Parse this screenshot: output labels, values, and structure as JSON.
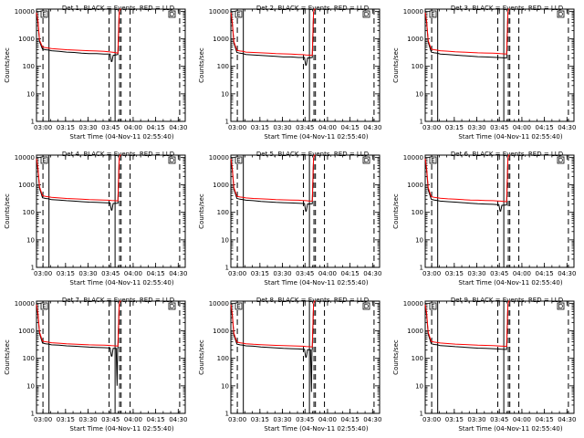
{
  "colors": {
    "events": "#000000",
    "lld": "#ff0000",
    "background": "#ffffff"
  },
  "shared": {
    "ylabel": "Counts/sec",
    "xlabel": "Start Time (04-Nov-11 02:55:40)",
    "xticks": [
      "03:00",
      "03:15",
      "03:30",
      "03:45",
      "04:00",
      "04:15",
      "04:30"
    ],
    "yticks": [
      "1",
      "10",
      "100",
      "1000",
      "10000"
    ],
    "legend_markers": [
      "E",
      "D"
    ]
  },
  "chart_data": [
    {
      "type": "line",
      "title": "Det 1, BLACK = Events, RED = LLD",
      "x_unit": "minutes since 02:55:40",
      "xlim": [
        0,
        99
      ],
      "ylim": [
        1,
        12000
      ],
      "yscale": "log",
      "solid_vlines": [
        8.3,
        52.3
      ],
      "dashed_vlines": [
        4.3,
        48.3,
        55.3,
        56.3,
        62.3,
        95.3
      ],
      "series": [
        {
          "name": "Events",
          "x": [
            0,
            1,
            2,
            4,
            6,
            8,
            10,
            15,
            20,
            25,
            30,
            35,
            40,
            45,
            48,
            49,
            49.8,
            50.2,
            51,
            54.2,
            55,
            55.6,
            56.2
          ],
          "y": [
            9000,
            4000,
            800,
            420,
            400,
            390,
            370,
            350,
            330,
            320,
            300,
            290,
            290,
            280,
            280,
            280,
            150,
            150,
            250,
            270,
            9000,
            12000,
            12000
          ]
        },
        {
          "name": "LLD",
          "x": [
            0,
            1,
            2,
            4,
            6,
            8,
            10,
            15,
            20,
            25,
            30,
            35,
            40,
            45,
            48,
            50,
            52,
            54.2,
            55,
            55.6,
            56.2
          ],
          "y": [
            9000,
            4500,
            900,
            500,
            480,
            460,
            440,
            420,
            400,
            390,
            380,
            370,
            360,
            350,
            340,
            330,
            320,
            300,
            9000,
            12000,
            12000
          ]
        }
      ]
    },
    {
      "type": "line",
      "title": "Det 2, BLACK = Events, RED = LLD",
      "x_unit": "minutes since 02:55:40",
      "xlim": [
        0,
        99
      ],
      "ylim": [
        1,
        12000
      ],
      "yscale": "log",
      "solid_vlines": [
        8.3,
        52.3
      ],
      "dashed_vlines": [
        4.3,
        48.3,
        55.3,
        56.3,
        62.3,
        95.3
      ],
      "series": [
        {
          "name": "Events",
          "x": [
            0,
            1,
            2,
            4,
            6,
            8,
            10,
            15,
            20,
            25,
            30,
            35,
            40,
            45,
            48,
            49,
            49.8,
            50.2,
            51,
            54.2,
            55,
            55.6,
            56.2
          ],
          "y": [
            9000,
            3500,
            700,
            320,
            300,
            290,
            270,
            260,
            250,
            240,
            230,
            220,
            220,
            210,
            210,
            210,
            110,
            110,
            200,
            210,
            9000,
            12000,
            12000
          ]
        },
        {
          "name": "LLD",
          "x": [
            0,
            1,
            2,
            4,
            6,
            8,
            10,
            15,
            20,
            25,
            30,
            35,
            40,
            45,
            48,
            50,
            52,
            54.2,
            55,
            55.6,
            56.2
          ],
          "y": [
            9000,
            4000,
            800,
            380,
            360,
            350,
            330,
            320,
            310,
            300,
            290,
            285,
            280,
            270,
            265,
            260,
            255,
            250,
            9000,
            12000,
            12000
          ]
        }
      ]
    },
    {
      "type": "line",
      "title": "Det 3, BLACK = Events, RED = LLD",
      "x_unit": "minutes since 02:55:40",
      "xlim": [
        0,
        99
      ],
      "ylim": [
        1,
        12000
      ],
      "yscale": "log",
      "solid_vlines": [
        8.3,
        52.3
      ],
      "dashed_vlines": [
        4.3,
        48.3,
        55.3,
        56.3,
        62.3,
        95.3
      ],
      "series": [
        {
          "name": "Events",
          "x": [
            0,
            1,
            2,
            4,
            6,
            8,
            10,
            15,
            20,
            25,
            30,
            35,
            40,
            45,
            48,
            51,
            54.2,
            55,
            55.6,
            56.2
          ],
          "y": [
            9000,
            3800,
            750,
            330,
            310,
            300,
            280,
            270,
            255,
            245,
            235,
            225,
            220,
            215,
            210,
            205,
            200,
            9000,
            12000,
            12000
          ]
        },
        {
          "name": "LLD",
          "x": [
            0,
            1,
            2,
            4,
            6,
            8,
            10,
            15,
            20,
            25,
            30,
            35,
            40,
            45,
            48,
            50,
            52,
            54.2,
            55,
            55.6,
            56.2
          ],
          "y": [
            9000,
            4200,
            850,
            420,
            400,
            385,
            370,
            355,
            340,
            330,
            320,
            310,
            305,
            300,
            295,
            290,
            285,
            280,
            9000,
            12000,
            12000
          ]
        }
      ]
    },
    {
      "type": "line",
      "title": "Det 4, BLACK = Events, RED = LLD",
      "x_unit": "minutes since 02:55:40",
      "xlim": [
        0,
        99
      ],
      "ylim": [
        1,
        12000
      ],
      "yscale": "log",
      "solid_vlines": [
        8.3,
        52.3
      ],
      "dashed_vlines": [
        4.3,
        48.3,
        55.3,
        56.3,
        62.3,
        95.3
      ],
      "series": [
        {
          "name": "Events",
          "x": [
            0,
            1,
            2,
            4,
            6,
            8,
            10,
            15,
            20,
            25,
            30,
            35,
            40,
            45,
            48,
            49,
            49.8,
            50.2,
            51,
            54.2,
            55,
            55.6,
            56.2
          ],
          "y": [
            9000,
            3600,
            750,
            340,
            320,
            310,
            290,
            280,
            265,
            255,
            245,
            235,
            230,
            225,
            220,
            220,
            120,
            120,
            210,
            215,
            9000,
            12000,
            12000
          ]
        },
        {
          "name": "LLD",
          "x": [
            0,
            1,
            2,
            4,
            6,
            8,
            10,
            15,
            20,
            25,
            30,
            35,
            40,
            45,
            48,
            50,
            52,
            54.2,
            55,
            55.6,
            56.2
          ],
          "y": [
            9000,
            4100,
            850,
            400,
            380,
            365,
            350,
            335,
            320,
            310,
            300,
            290,
            285,
            280,
            275,
            270,
            265,
            260,
            9000,
            12000,
            12000
          ]
        }
      ]
    },
    {
      "type": "line",
      "title": "Det 5, BLACK = Events, RED = LLD",
      "x_unit": "minutes since 02:55:40",
      "xlim": [
        0,
        99
      ],
      "ylim": [
        1,
        12000
      ],
      "yscale": "log",
      "solid_vlines": [
        8.3,
        52.3
      ],
      "dashed_vlines": [
        4.3,
        48.3,
        55.3,
        56.3,
        62.3,
        95.3
      ],
      "series": [
        {
          "name": "Events",
          "x": [
            0,
            1,
            2,
            4,
            6,
            8,
            10,
            15,
            20,
            25,
            30,
            35,
            40,
            45,
            48,
            49,
            49.8,
            50.2,
            51,
            54.2,
            55,
            55.6,
            56.2
          ],
          "y": [
            9000,
            3400,
            700,
            320,
            300,
            290,
            275,
            265,
            250,
            240,
            230,
            225,
            220,
            215,
            210,
            210,
            110,
            110,
            200,
            205,
            9000,
            12000,
            12000
          ]
        },
        {
          "name": "LLD",
          "x": [
            0,
            1,
            2,
            4,
            6,
            8,
            10,
            15,
            20,
            25,
            30,
            35,
            40,
            45,
            48,
            50,
            52,
            54.2,
            55,
            55.6,
            56.2
          ],
          "y": [
            9000,
            3900,
            800,
            380,
            360,
            350,
            335,
            320,
            310,
            300,
            290,
            285,
            280,
            275,
            270,
            265,
            260,
            255,
            9000,
            12000,
            12000
          ]
        }
      ]
    },
    {
      "type": "line",
      "title": "Det 6, BLACK = Events, RED = LLD",
      "x_unit": "minutes since 02:55:40",
      "xlim": [
        0,
        99
      ],
      "ylim": [
        1,
        12000
      ],
      "yscale": "log",
      "solid_vlines": [
        8.3,
        52.3
      ],
      "dashed_vlines": [
        4.3,
        48.3,
        55.3,
        56.3,
        62.3,
        95.3
      ],
      "series": [
        {
          "name": "Events",
          "x": [
            0,
            1,
            2,
            4,
            6,
            8,
            10,
            15,
            20,
            25,
            30,
            35,
            40,
            45,
            48,
            49,
            49.8,
            50.2,
            51,
            54.2,
            55,
            55.6,
            56.2
          ],
          "y": [
            9000,
            3300,
            650,
            300,
            280,
            270,
            255,
            245,
            235,
            225,
            215,
            205,
            200,
            195,
            190,
            190,
            110,
            110,
            180,
            185,
            9000,
            12000,
            12000
          ]
        },
        {
          "name": "LLD",
          "x": [
            0,
            1,
            2,
            4,
            6,
            8,
            10,
            15,
            20,
            25,
            30,
            35,
            40,
            45,
            48,
            50,
            52,
            54.2,
            55,
            55.6,
            56.2
          ],
          "y": [
            9000,
            3800,
            780,
            370,
            350,
            340,
            325,
            310,
            300,
            290,
            280,
            275,
            270,
            265,
            260,
            255,
            250,
            245,
            9000,
            12000,
            12000
          ]
        }
      ]
    },
    {
      "type": "line",
      "title": "Det 7, BLACK = Events, RED = LLD",
      "x_unit": "minutes since 02:55:40",
      "xlim": [
        0,
        99
      ],
      "ylim": [
        1,
        12000
      ],
      "yscale": "log",
      "solid_vlines": [
        8.3,
        52.3
      ],
      "dashed_vlines": [
        4.3,
        48.3,
        55.3,
        56.3,
        62.3,
        95.3
      ],
      "series": [
        {
          "name": "Events",
          "x": [
            0,
            1,
            2,
            4,
            6,
            8,
            10,
            15,
            20,
            25,
            30,
            35,
            40,
            45,
            48,
            49,
            49.8,
            50.2,
            51,
            53,
            53.6,
            54,
            54.2,
            55,
            55.6,
            56.2
          ],
          "y": [
            9000,
            3800,
            800,
            360,
            340,
            330,
            310,
            300,
            285,
            275,
            265,
            255,
            250,
            245,
            240,
            240,
            120,
            120,
            230,
            230,
            10,
            230,
            235,
            9000,
            12000,
            12000
          ]
        },
        {
          "name": "LLD",
          "x": [
            0,
            1,
            2,
            4,
            6,
            8,
            10,
            15,
            20,
            25,
            30,
            35,
            40,
            45,
            48,
            50,
            52,
            54.2,
            55,
            55.6,
            56.2
          ],
          "y": [
            9000,
            4300,
            900,
            420,
            400,
            385,
            370,
            355,
            340,
            330,
            320,
            310,
            305,
            300,
            295,
            290,
            285,
            280,
            9000,
            12000,
            12000
          ]
        }
      ]
    },
    {
      "type": "line",
      "title": "Det 8, BLACK = Events, RED = LLD",
      "x_unit": "minutes since 02:55:40",
      "xlim": [
        0,
        99
      ],
      "ylim": [
        1,
        12000
      ],
      "yscale": "log",
      "solid_vlines": [
        8.3,
        52.3
      ],
      "dashed_vlines": [
        4.3,
        48.3,
        55.3,
        56.3,
        62.3,
        95.3
      ],
      "series": [
        {
          "name": "Events",
          "x": [
            0,
            1,
            2,
            4,
            6,
            8,
            10,
            15,
            20,
            25,
            30,
            35,
            40,
            45,
            48,
            49,
            49.8,
            50.2,
            51,
            53,
            53.6,
            54,
            54.2,
            55,
            55.6,
            56.2
          ],
          "y": [
            9000,
            3500,
            700,
            330,
            310,
            300,
            285,
            275,
            260,
            250,
            240,
            230,
            225,
            220,
            215,
            215,
            110,
            110,
            205,
            205,
            6,
            205,
            210,
            9000,
            12000,
            12000
          ]
        },
        {
          "name": "LLD",
          "x": [
            0,
            1,
            2,
            4,
            6,
            8,
            10,
            15,
            20,
            25,
            30,
            35,
            40,
            45,
            48,
            50,
            52,
            54.2,
            55,
            55.6,
            56.2
          ],
          "y": [
            9000,
            4000,
            820,
            390,
            370,
            355,
            340,
            325,
            315,
            305,
            295,
            290,
            285,
            280,
            275,
            270,
            265,
            260,
            9000,
            12000,
            12000
          ]
        }
      ]
    },
    {
      "type": "line",
      "title": "Det 9, BLACK = Events, RED = LLD",
      "x_unit": "minutes since 02:55:40",
      "xlim": [
        0,
        99
      ],
      "ylim": [
        1,
        12000
      ],
      "yscale": "log",
      "solid_vlines": [
        8.3,
        52.3
      ],
      "dashed_vlines": [
        4.3,
        48.3,
        55.3,
        56.3,
        62.3,
        95.3
      ],
      "series": [
        {
          "name": "Events",
          "x": [
            0,
            1,
            2,
            4,
            6,
            8,
            10,
            15,
            20,
            25,
            30,
            35,
            40,
            45,
            48,
            51,
            54.2,
            55,
            55.6,
            56.2
          ],
          "y": [
            9000,
            3700,
            750,
            340,
            320,
            310,
            290,
            280,
            265,
            255,
            245,
            235,
            230,
            225,
            220,
            215,
            210,
            9000,
            12000,
            12000
          ]
        },
        {
          "name": "LLD",
          "x": [
            0,
            1,
            2,
            4,
            6,
            8,
            10,
            15,
            20,
            25,
            30,
            35,
            40,
            45,
            48,
            50,
            52,
            54.2,
            55,
            55.6,
            56.2
          ],
          "y": [
            9000,
            4200,
            870,
            410,
            390,
            375,
            360,
            345,
            330,
            320,
            310,
            300,
            295,
            290,
            285,
            280,
            275,
            270,
            9000,
            12000,
            12000
          ]
        }
      ]
    }
  ]
}
